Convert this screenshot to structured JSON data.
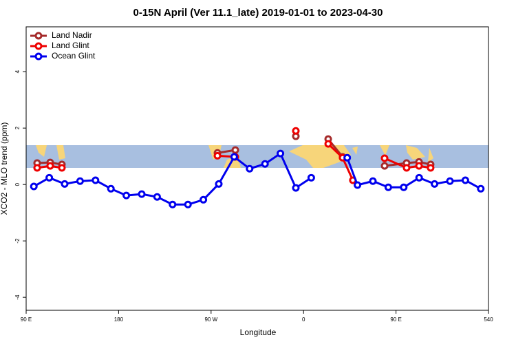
{
  "chart_data": {
    "type": "line",
    "title": "0-15N April (Ver 11.1_late)   2019-01-01 to 2023-04-30",
    "xlabel": "Longitude",
    "ylabel": "XCO2 - MLO trend (ppm)",
    "xlim": [
      90,
      540
    ],
    "xticks": [
      {
        "value": 90,
        "label": "90 E"
      },
      180,
      {
        "value": 270,
        "label": "90 W"
      },
      {
        "value": 360,
        "label": "0"
      },
      {
        "value": 450,
        "label": "90 E"
      },
      540
    ],
    "ylim": [
      -4.46,
      5.59
    ],
    "yticks": [
      -4,
      -2,
      0,
      2,
      4
    ],
    "legend": "upper left",
    "series": [
      {
        "name": "Land Nadir",
        "color": "#a52a2a",
        "x": [
          100.7,
          113.4,
          124.8,
          null,
          276.2,
          293.6,
          null,
          352.5,
          null,
          384,
          398,
          null,
          438.9,
          460.3,
          472.4,
          483.7
        ],
        "values": [
          0.76,
          0.78,
          0.71,
          null,
          1.12,
          1.22,
          null,
          1.71,
          null,
          1.61,
          0.98,
          null,
          0.66,
          0.76,
          0.8,
          0.71
        ]
      },
      {
        "name": "Land Glint",
        "color": "#ee0000",
        "x": [
          100.7,
          113.4,
          124.8,
          null,
          276.2,
          293.6,
          null,
          352.5,
          null,
          384,
          398,
          408,
          null,
          438.9,
          460.3,
          472.4,
          483.7
        ],
        "values": [
          0.59,
          0.66,
          0.59,
          null,
          1.02,
          0.98,
          null,
          1.9,
          null,
          1.44,
          0.95,
          0.15,
          null,
          0.93,
          0.59,
          0.66,
          0.59
        ]
      },
      {
        "name": "Ocean Glint",
        "color": "#0000ee",
        "x": [
          97.5,
          112.5,
          127.5,
          142.5,
          157.5,
          172.5,
          187.5,
          202.5,
          217.5,
          232.5,
          247.5,
          262.5,
          277.5,
          292.5,
          307.5,
          322.5,
          337.5,
          352.5,
          367.5,
          null,
          402.5,
          412.5,
          427.5,
          442.5,
          457.5,
          472.5,
          487.5,
          502.5,
          517.5,
          532.5
        ],
        "values": [
          -0.07,
          0.24,
          0.02,
          0.12,
          0.15,
          -0.15,
          -0.39,
          -0.34,
          -0.44,
          -0.71,
          -0.71,
          -0.54,
          0.02,
          0.98,
          0.56,
          0.73,
          1.1,
          -0.12,
          0.24,
          null,
          0.95,
          -0.02,
          0.12,
          -0.1,
          -0.1,
          0.24,
          0.02,
          0.12,
          0.15,
          -0.15
        ]
      }
    ]
  }
}
